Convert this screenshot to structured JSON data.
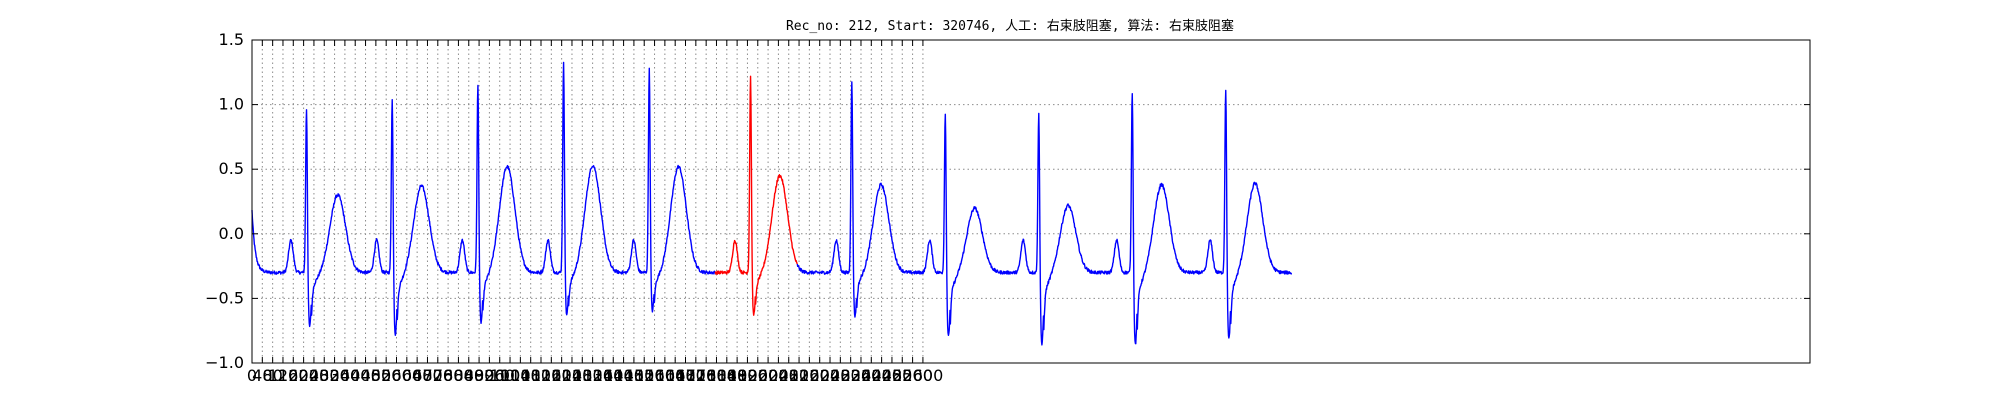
{
  "chart_data": {
    "type": "line",
    "title": "Rec_no: 212, Start: 320746, 人工: 右束肢阻塞, 算法: 右束肢阻塞",
    "xlabel": "",
    "ylabel": "",
    "xlim": [
      0,
      4000
    ],
    "ylim": [
      -1.0,
      1.5
    ],
    "grid": true,
    "x_tick_labels": [
      "0",
      "40",
      "80",
      "120",
      "160",
      "200",
      "240",
      "280",
      "320",
      "360",
      "400",
      "440",
      "480",
      "520",
      "560",
      "600",
      "640",
      "680",
      "720",
      "760",
      "800",
      "840",
      "880",
      "920",
      "960",
      "1000",
      "1040",
      "1080",
      "1120",
      "1160",
      "1200",
      "1240",
      "1280",
      "1320",
      "1360",
      "1400",
      "1440",
      "1480",
      "1520",
      "1560",
      "1600",
      "1640",
      "1680",
      "1720",
      "1760",
      "1800",
      "1840",
      "1880",
      "1920",
      "1960",
      "2000",
      "2040",
      "2080",
      "2120",
      "2160",
      "2200",
      "2240",
      "2280",
      "2320",
      "2360",
      "2400",
      "2440",
      "2480",
      "2520",
      "2560",
      "2600"
    ],
    "y_ticks": [
      -1.0,
      -0.5,
      0.0,
      0.5,
      1.0,
      1.5
    ],
    "y_tick_labels": [
      "−1.0",
      "−0.5",
      "0.0",
      "0.5",
      "1.0",
      "1.5"
    ],
    "colors": {
      "normal": "#0000ff",
      "highlight": "#ff0000",
      "grid": "#8c8c8c"
    },
    "x_scale": 0.6625,
    "beats": [
      {
        "r": 140,
        "r_amp": 1.02,
        "s": -0.72,
        "t": 0.2,
        "t_pos": 220,
        "highlight": false
      },
      {
        "r": 360,
        "r_amp": 1.1,
        "s": -0.78,
        "t": 0.27,
        "t_pos": 435,
        "highlight": false
      },
      {
        "r": 580,
        "r_amp": 1.2,
        "s": -0.69,
        "t": 0.42,
        "t_pos": 655,
        "highlight": false
      },
      {
        "r": 800,
        "r_amp": 1.36,
        "s": -0.63,
        "t": 0.43,
        "t_pos": 875,
        "highlight": false
      },
      {
        "r": 1020,
        "r_amp": 1.31,
        "s": -0.6,
        "t": 0.42,
        "t_pos": 1095,
        "highlight": false
      },
      {
        "r": 1280,
        "r_amp": 1.26,
        "s": -0.63,
        "t": 0.35,
        "t_pos": 1355,
        "highlight": true
      },
      {
        "r": 1540,
        "r_amp": 1.23,
        "s": -0.64,
        "t": 0.28,
        "t_pos": 1615,
        "highlight": false
      },
      {
        "r": 1780,
        "r_amp": 0.99,
        "s": -0.8,
        "t": 0.1,
        "t_pos": 1855,
        "highlight": false
      },
      {
        "r": 2020,
        "r_amp": 1.0,
        "s": -0.86,
        "t": 0.12,
        "t_pos": 2095,
        "highlight": false
      },
      {
        "r": 2260,
        "r_amp": 1.17,
        "s": -0.86,
        "t": 0.28,
        "t_pos": 2335,
        "highlight": false
      },
      {
        "r": 2500,
        "r_amp": 1.19,
        "s": -0.82,
        "t": 0.29,
        "t_pos": 2575,
        "highlight": false
      }
    ],
    "x_end": 2670,
    "end_value": -0.31,
    "start_value": 0.18
  }
}
